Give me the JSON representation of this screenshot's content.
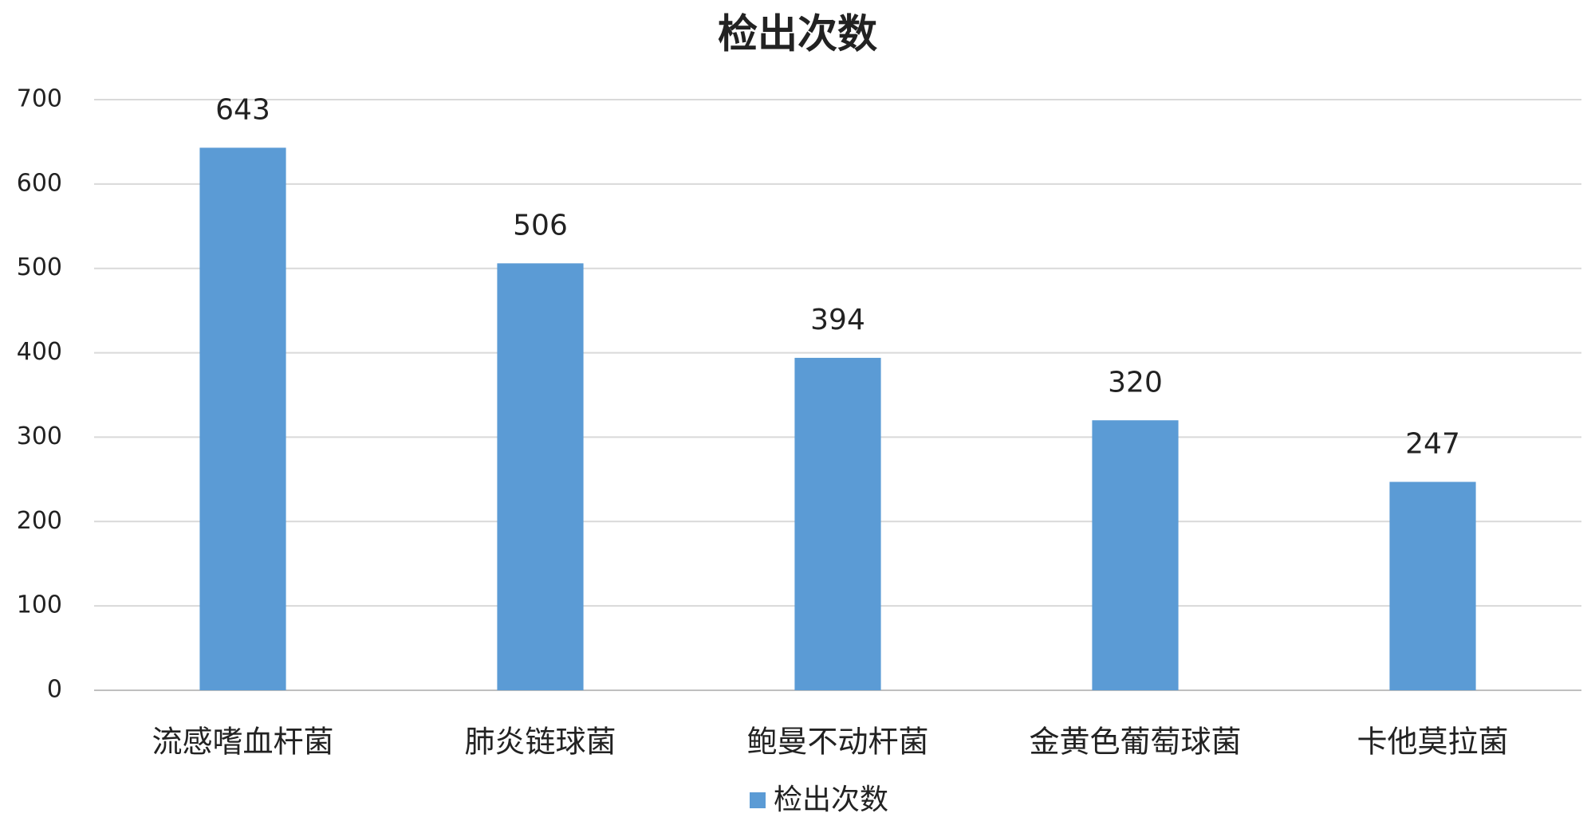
{
  "chart_data": {
    "type": "bar",
    "title": "检出次数",
    "categories": [
      "流感嗜血杆菌",
      "肺炎链球菌",
      "鲍曼不动杆菌",
      "金黄色葡萄球菌",
      "卡他莫拉菌"
    ],
    "series": [
      {
        "name": "检出次数",
        "color": "#5b9bd5",
        "values": [
          643,
          506,
          394,
          320,
          247
        ]
      }
    ],
    "ylim": [
      0,
      700
    ],
    "yticks": [
      0,
      100,
      200,
      300,
      400,
      500,
      600,
      700
    ],
    "grid": true,
    "legend": "bottom"
  }
}
